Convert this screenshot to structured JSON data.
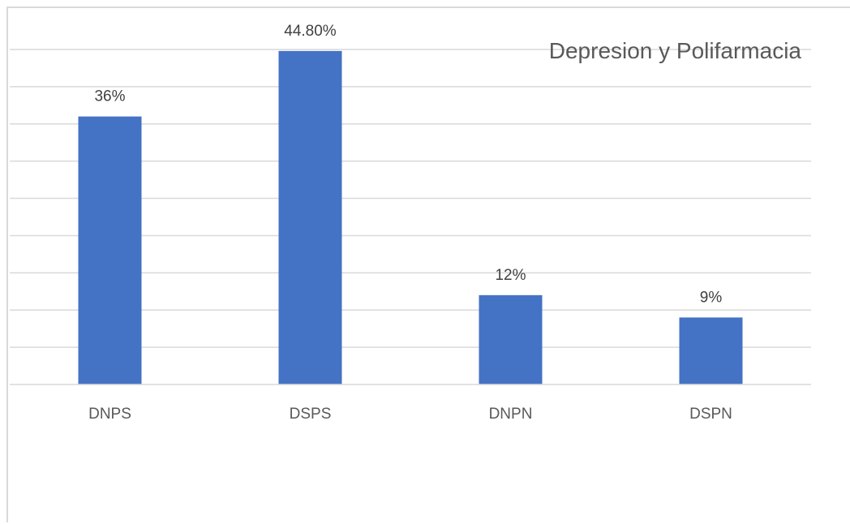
{
  "chart_data": {
    "type": "bar",
    "title": "Depresion y Polifarmacia",
    "categories": [
      "DNPS",
      "DSPS",
      "DNPN",
      "DSPN"
    ],
    "values": [
      36,
      44.8,
      12,
      9
    ],
    "data_labels": [
      "36%",
      "44.80%",
      "12%",
      "9%"
    ],
    "ylim": [
      0,
      45
    ],
    "grid": true,
    "legend": "none",
    "colors": {
      "bar": "#4472c4",
      "grid": "#d9d9d9"
    }
  }
}
